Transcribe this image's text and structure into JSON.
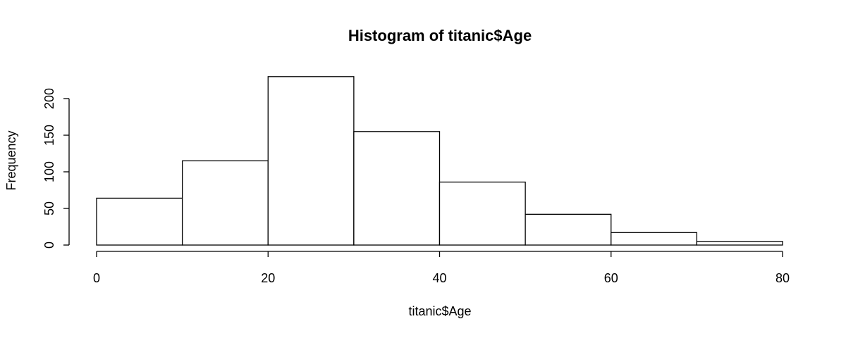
{
  "chart_data": {
    "type": "bar",
    "subtype": "histogram",
    "title": "Histogram of titanic$Age",
    "xlabel": "titanic$Age",
    "ylabel": "Frequency",
    "bins": [
      {
        "x0": 0,
        "x1": 10,
        "value": 64
      },
      {
        "x0": 10,
        "x1": 20,
        "value": 115
      },
      {
        "x0": 20,
        "x1": 30,
        "value": 230
      },
      {
        "x0": 30,
        "x1": 40,
        "value": 155
      },
      {
        "x0": 40,
        "x1": 50,
        "value": 86
      },
      {
        "x0": 50,
        "x1": 60,
        "value": 42
      },
      {
        "x0": 60,
        "x1": 70,
        "value": 17
      },
      {
        "x0": 70,
        "x1": 80,
        "value": 5
      }
    ],
    "xlim": [
      0,
      80
    ],
    "ylim": [
      0,
      230
    ],
    "xticks": [
      "0",
      "20",
      "40",
      "60",
      "80"
    ],
    "yticks": [
      "0",
      "50",
      "100",
      "150",
      "200"
    ],
    "grid": false,
    "legend": "none",
    "bar_fill": "#ffffff",
    "bar_stroke": "#000000"
  }
}
